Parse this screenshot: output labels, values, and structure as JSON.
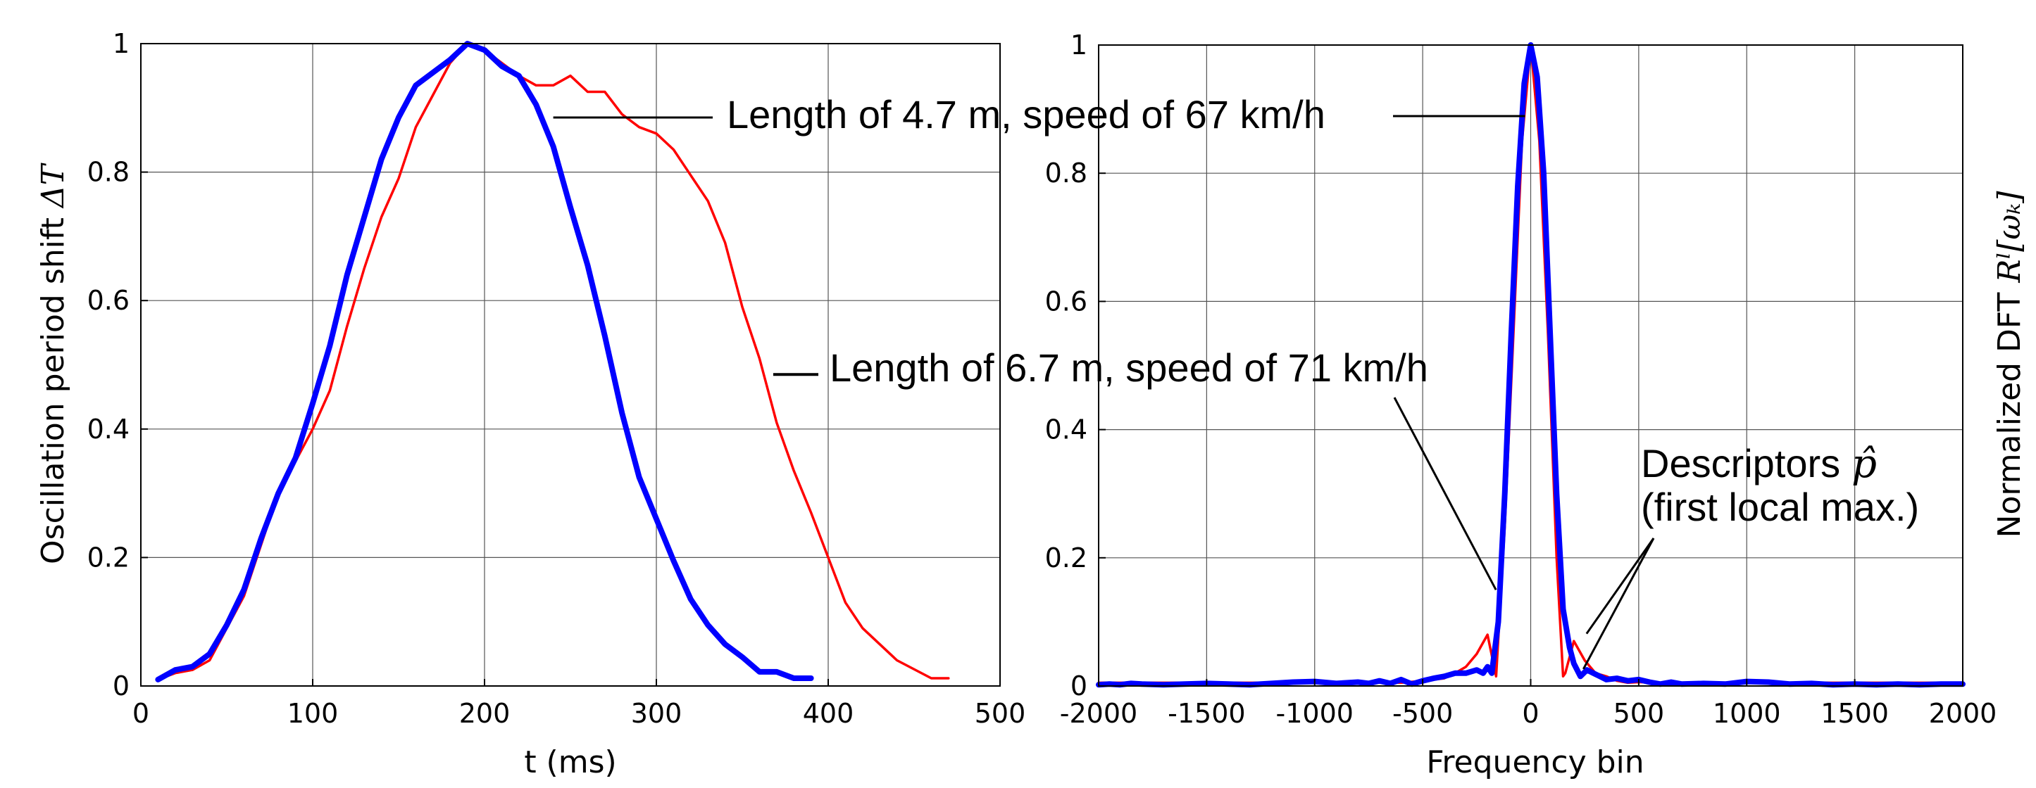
{
  "chart_data": [
    {
      "type": "line",
      "xlabel": "t (ms)",
      "ylabel": "Oscillation period shift",
      "ylabel_symbol": "ΔT",
      "xlim": [
        0,
        500
      ],
      "ylim": [
        0,
        1
      ],
      "xticks": [
        0,
        100,
        200,
        300,
        400,
        500
      ],
      "yticks": [
        0,
        0.2,
        0.4,
        0.6,
        0.8,
        1
      ],
      "xtick_labels": [
        "0",
        "100",
        "200",
        "300",
        "400",
        "500"
      ],
      "ytick_labels": [
        "0",
        "0.2",
        "0.4",
        "0.6",
        "0.8",
        "1"
      ],
      "grid": true,
      "series": [
        {
          "color": "#ff0000",
          "width": "thin",
          "x": [
            10,
            20,
            30,
            40,
            50,
            60,
            70,
            80,
            90,
            100,
            110,
            120,
            130,
            140,
            150,
            160,
            170,
            180,
            190,
            200,
            210,
            220,
            230,
            240,
            250,
            260,
            270,
            280,
            290,
            300,
            310,
            320,
            330,
            340,
            350,
            360,
            370,
            380,
            390,
            400,
            410,
            420,
            440,
            460,
            470
          ],
          "y": [
            0.01,
            0.02,
            0.025,
            0.04,
            0.09,
            0.14,
            0.22,
            0.3,
            0.35,
            0.4,
            0.46,
            0.56,
            0.65,
            0.73,
            0.79,
            0.87,
            0.92,
            0.97,
            1.0,
            0.99,
            0.97,
            0.95,
            0.935,
            0.935,
            0.95,
            0.925,
            0.925,
            0.89,
            0.87,
            0.86,
            0.835,
            0.795,
            0.755,
            0.69,
            0.59,
            0.51,
            0.41,
            0.335,
            0.27,
            0.2,
            0.13,
            0.09,
            0.04,
            0.012,
            0.012
          ]
        },
        {
          "color": "#0000ff",
          "width": "thick",
          "x": [
            10,
            20,
            30,
            40,
            50,
            60,
            70,
            80,
            90,
            100,
            110,
            120,
            130,
            140,
            150,
            160,
            170,
            180,
            190,
            200,
            210,
            220,
            230,
            240,
            250,
            260,
            270,
            280,
            290,
            300,
            310,
            320,
            330,
            340,
            350,
            360,
            370,
            380,
            390
          ],
          "y": [
            0.01,
            0.025,
            0.03,
            0.05,
            0.095,
            0.15,
            0.23,
            0.3,
            0.355,
            0.44,
            0.53,
            0.64,
            0.73,
            0.82,
            0.885,
            0.935,
            0.955,
            0.975,
            1.0,
            0.99,
            0.965,
            0.95,
            0.905,
            0.84,
            0.745,
            0.655,
            0.545,
            0.425,
            0.325,
            0.26,
            0.195,
            0.135,
            0.095,
            0.065,
            0.045,
            0.022,
            0.022,
            0.012,
            0.012
          ]
        }
      ],
      "annotations": [
        {
          "text": "Length of 4.7 m, speed of 67 km/h",
          "target": [
            240,
            0.885
          ]
        },
        {
          "text": "Length of 6.7 m, speed of 71 km/h",
          "target": [
            368,
            0.485
          ]
        }
      ]
    },
    {
      "type": "line",
      "xlabel": "Frequency bin",
      "ylabel": "Normalized DFT",
      "ylabel_symbol": "Rˡ[ωₖ]",
      "xlim": [
        -2000,
        2000
      ],
      "ylim": [
        0,
        1
      ],
      "xticks": [
        -2000,
        -1500,
        -1000,
        -500,
        0,
        500,
        1000,
        1500,
        2000
      ],
      "yticks": [
        0,
        0.2,
        0.4,
        0.6,
        0.8,
        1
      ],
      "xtick_labels": [
        "-2000",
        "-1500",
        "-1000",
        "-500",
        "0",
        "500",
        "1000",
        "1500",
        "2000"
      ],
      "ytick_labels": [
        "0",
        "0.2",
        "0.4",
        "0.6",
        "0.8",
        "1"
      ],
      "grid": true,
      "series": [
        {
          "color": "#ff0000",
          "width": "thin",
          "x": [
            -2000,
            -600,
            -500,
            -400,
            -350,
            -300,
            -250,
            -200,
            -160,
            -120,
            -80,
            -40,
            0,
            40,
            80,
            120,
            150,
            160,
            200,
            250,
            300,
            350,
            400,
            450,
            500,
            600,
            2000
          ],
          "y": [
            0.005,
            0.005,
            0.008,
            0.012,
            0.02,
            0.03,
            0.05,
            0.08,
            0.015,
            0.25,
            0.55,
            0.85,
            1.0,
            0.85,
            0.55,
            0.2,
            0.015,
            0.02,
            0.07,
            0.04,
            0.02,
            0.015,
            0.008,
            0.005,
            0.006,
            0.005,
            0.005
          ]
        },
        {
          "color": "#0000ff",
          "width": "thick",
          "x": [
            -2000,
            -1950,
            -1900,
            -1850,
            -1800,
            -1700,
            -1600,
            -1500,
            -1400,
            -1300,
            -1200,
            -1100,
            -1000,
            -900,
            -800,
            -750,
            -700,
            -650,
            -600,
            -550,
            -500,
            -450,
            -400,
            -350,
            -300,
            -250,
            -220,
            -200,
            -180,
            -150,
            -120,
            -90,
            -60,
            -30,
            0,
            30,
            60,
            90,
            120,
            150,
            180,
            200,
            230,
            260,
            290,
            320,
            350,
            400,
            450,
            500,
            550,
            600,
            650,
            700,
            800,
            900,
            1000,
            1100,
            1200,
            1300,
            1400,
            1500,
            1600,
            1700,
            1800,
            1900,
            2000
          ],
          "y": [
            0.002,
            0.003,
            0.002,
            0.004,
            0.003,
            0.002,
            0.003,
            0.004,
            0.003,
            0.002,
            0.004,
            0.006,
            0.007,
            0.004,
            0.006,
            0.004,
            0.008,
            0.004,
            0.01,
            0.003,
            0.008,
            0.012,
            0.015,
            0.02,
            0.02,
            0.025,
            0.02,
            0.03,
            0.02,
            0.1,
            0.3,
            0.55,
            0.78,
            0.94,
            1.0,
            0.95,
            0.8,
            0.55,
            0.3,
            0.12,
            0.06,
            0.035,
            0.015,
            0.025,
            0.02,
            0.015,
            0.01,
            0.012,
            0.008,
            0.01,
            0.006,
            0.003,
            0.006,
            0.003,
            0.004,
            0.003,
            0.007,
            0.006,
            0.003,
            0.004,
            0.002,
            0.003,
            0.002,
            0.003,
            0.002,
            0.003,
            0.003
          ]
        }
      ],
      "annotations": [
        {
          "text": "Descriptors",
          "math": "p̂",
          "line2": "(first local max.)",
          "targets": [
            [
              200,
              0.075
            ],
            [
              270,
              0.022
            ]
          ]
        },
        {
          "target": [
            -200,
            0.15
          ]
        },
        {
          "target": [
            0,
            0.885
          ]
        }
      ]
    }
  ]
}
